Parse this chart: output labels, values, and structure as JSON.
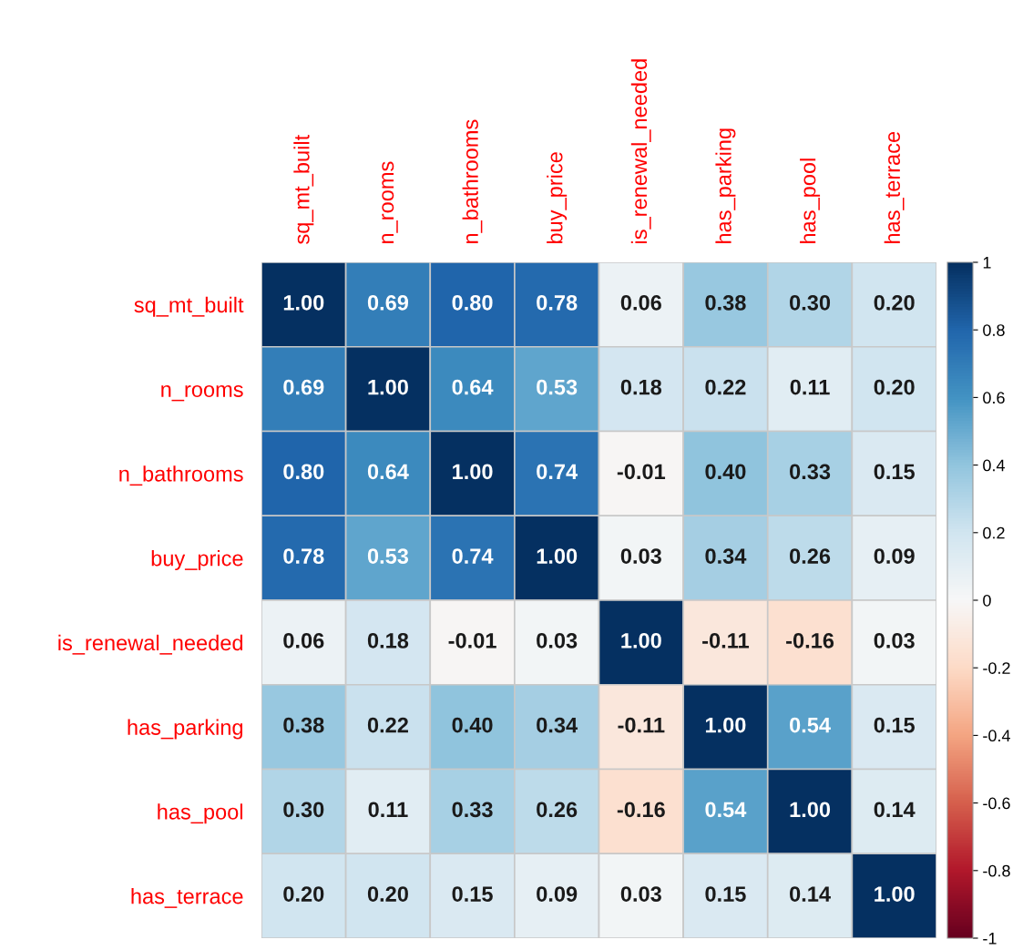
{
  "chart_data": {
    "type": "heatmap",
    "categories": [
      "sq_mt_built",
      "n_rooms",
      "n_bathrooms",
      "buy_price",
      "is_renewal_needed",
      "has_parking",
      "has_pool",
      "has_terrace"
    ],
    "y_categories": [
      "sq_mt_built",
      "n_rooms",
      "n_bathrooms",
      "buy_price",
      "is_renewal_needed",
      "has_parking",
      "has_pool",
      "has_terrace"
    ],
    "cells": [
      [
        1.0,
        0.69,
        0.8,
        0.78,
        0.06,
        0.38,
        0.3,
        0.2
      ],
      [
        0.69,
        1.0,
        0.64,
        0.53,
        0.18,
        0.22,
        0.11,
        0.2
      ],
      [
        0.8,
        0.64,
        1.0,
        0.74,
        -0.01,
        0.4,
        0.33,
        0.15
      ],
      [
        0.78,
        0.53,
        0.74,
        1.0,
        0.03,
        0.34,
        0.26,
        0.09
      ],
      [
        0.06,
        0.18,
        -0.01,
        0.03,
        1.0,
        -0.11,
        -0.16,
        0.03
      ],
      [
        0.38,
        0.22,
        0.4,
        0.34,
        -0.11,
        1.0,
        0.54,
        0.15
      ],
      [
        0.3,
        0.11,
        0.33,
        0.26,
        -0.16,
        0.54,
        1.0,
        0.14
      ],
      [
        0.2,
        0.2,
        0.15,
        0.09,
        0.03,
        0.15,
        0.14,
        1.0
      ]
    ],
    "cell_labels": [
      [
        "1.00",
        "0.69",
        "0.80",
        "0.78",
        "0.06",
        "0.38",
        "0.30",
        "0.20"
      ],
      [
        "0.69",
        "1.00",
        "0.64",
        "0.53",
        "0.18",
        "0.22",
        "0.11",
        "0.20"
      ],
      [
        "0.80",
        "0.64",
        "1.00",
        "0.74",
        "-0.01",
        "0.40",
        "0.33",
        "0.15"
      ],
      [
        "0.78",
        "0.53",
        "0.74",
        "1.00",
        "0.03",
        "0.34",
        "0.26",
        "0.09"
      ],
      [
        "0.06",
        "0.18",
        "-0.01",
        "0.03",
        "1.00",
        "-0.11",
        "-0.16",
        "0.03"
      ],
      [
        "0.38",
        "0.22",
        "0.40",
        "0.34",
        "-0.11",
        "1.00",
        "0.54",
        "0.15"
      ],
      [
        "0.30",
        "0.11",
        "0.33",
        "0.26",
        "-0.16",
        "0.54",
        "1.00",
        "0.14"
      ],
      [
        "0.20",
        "0.20",
        "0.15",
        "0.09",
        "0.03",
        "0.15",
        "0.14",
        "1.00"
      ]
    ],
    "clim": [
      -1,
      1
    ],
    "cticks": [
      -1,
      -0.8,
      -0.6,
      -0.4,
      -0.2,
      0,
      0.2,
      0.4,
      0.6,
      0.8,
      1
    ]
  }
}
